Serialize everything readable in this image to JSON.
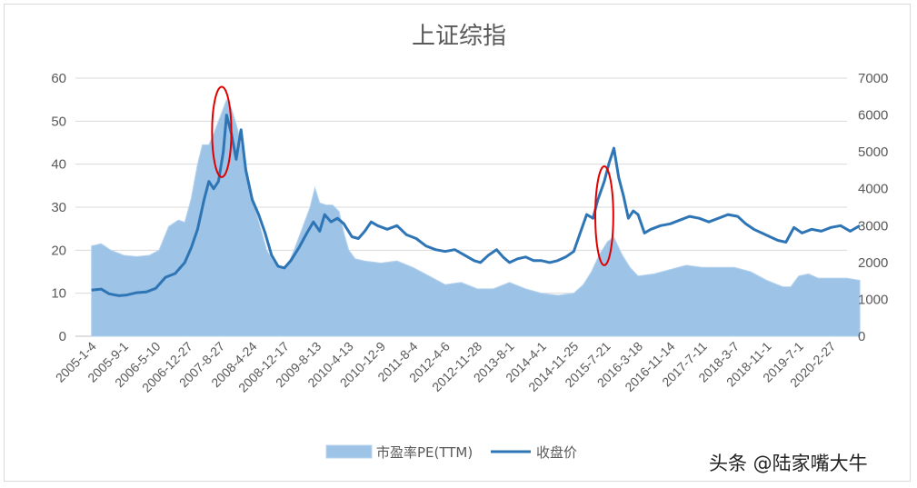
{
  "chart_data": {
    "type": "area+line",
    "title": "上证综指",
    "x_tick_labels": [
      "2005-1-4",
      "2005-9-1",
      "2006-5-10",
      "2006-12-27",
      "2007-8-27",
      "2008-4-24",
      "2008-12-17",
      "2009-8-13",
      "2010-4-13",
      "2010-12-9",
      "2011-8-4",
      "2012-4-6",
      "2012-11-28",
      "2013-8-1",
      "2014-4-1",
      "2014-11-25",
      "2015-7-21",
      "2016-3-18",
      "2016-11-14",
      "2017-7-11",
      "2018-3-7",
      "2018-11-1",
      "2019-7-1",
      "2020-2-27"
    ],
    "y_left": {
      "min": 0,
      "max": 60,
      "step": 10,
      "ticks": [
        "0",
        "10",
        "20",
        "30",
        "40",
        "50",
        "60"
      ]
    },
    "y_right": {
      "min": 0,
      "max": 7000,
      "step": 1000,
      "ticks": [
        "0",
        "1000",
        "2000",
        "3000",
        "4000",
        "5000",
        "6000",
        "7000"
      ]
    },
    "grid": true,
    "legend_position": "bottom",
    "series": [
      {
        "name": "市盈率PE(TTM)",
        "type": "area",
        "axis": "left",
        "color": "#9dc3e6",
        "points": [
          [
            0,
            21
          ],
          [
            0.3,
            21.5
          ],
          [
            0.6,
            20
          ],
          [
            1.0,
            18.8
          ],
          [
            1.4,
            18.5
          ],
          [
            1.8,
            18.8
          ],
          [
            2.1,
            20
          ],
          [
            2.4,
            25.5
          ],
          [
            2.7,
            27
          ],
          [
            2.9,
            26.5
          ],
          [
            3.1,
            32
          ],
          [
            3.3,
            40
          ],
          [
            3.45,
            44.5
          ],
          [
            3.65,
            44.5
          ],
          [
            3.8,
            47
          ],
          [
            3.95,
            50
          ],
          [
            4.05,
            52
          ],
          [
            4.2,
            55
          ],
          [
            4.35,
            53
          ],
          [
            4.55,
            48
          ],
          [
            4.7,
            43
          ],
          [
            4.85,
            38
          ],
          [
            5.0,
            32
          ],
          [
            5.15,
            28
          ],
          [
            5.3,
            24
          ],
          [
            5.45,
            20
          ],
          [
            5.65,
            17.5
          ],
          [
            5.9,
            16
          ],
          [
            6.1,
            16.5
          ],
          [
            6.3,
            20
          ],
          [
            6.55,
            25
          ],
          [
            6.8,
            30
          ],
          [
            6.95,
            34.5
          ],
          [
            7.1,
            31
          ],
          [
            7.3,
            30.5
          ],
          [
            7.5,
            30.5
          ],
          [
            7.7,
            29
          ],
          [
            7.85,
            24
          ],
          [
            8.0,
            20
          ],
          [
            8.2,
            18
          ],
          [
            8.5,
            17.5
          ],
          [
            9.0,
            17
          ],
          [
            9.5,
            17.5
          ],
          [
            10.0,
            16
          ],
          [
            10.5,
            14
          ],
          [
            11.0,
            12
          ],
          [
            11.5,
            12.5
          ],
          [
            12.0,
            11
          ],
          [
            12.5,
            11
          ],
          [
            13.0,
            12.5
          ],
          [
            13.5,
            11
          ],
          [
            14.0,
            10
          ],
          [
            14.5,
            9.5
          ],
          [
            15.0,
            10
          ],
          [
            15.3,
            12
          ],
          [
            15.55,
            15
          ],
          [
            15.8,
            19
          ],
          [
            16.05,
            22
          ],
          [
            16.25,
            23
          ],
          [
            16.5,
            19
          ],
          [
            16.75,
            16
          ],
          [
            17.0,
            14
          ],
          [
            17.5,
            14.5
          ],
          [
            18.0,
            15.5
          ],
          [
            18.5,
            16.5
          ],
          [
            19.0,
            16
          ],
          [
            19.5,
            16
          ],
          [
            20.0,
            16
          ],
          [
            20.5,
            15
          ],
          [
            21.0,
            13
          ],
          [
            21.5,
            11.5
          ],
          [
            21.75,
            11.5
          ],
          [
            22.0,
            14
          ],
          [
            22.3,
            14.5
          ],
          [
            22.6,
            13.5
          ],
          [
            23.0,
            13.5
          ],
          [
            23.5,
            13.5
          ],
          [
            23.9,
            13
          ]
        ]
      },
      {
        "name": "收盘价",
        "type": "line",
        "axis": "right",
        "color": "#2e75b6",
        "points": [
          [
            0,
            1250
          ],
          [
            0.3,
            1280
          ],
          [
            0.55,
            1150
          ],
          [
            0.85,
            1100
          ],
          [
            1.1,
            1120
          ],
          [
            1.4,
            1180
          ],
          [
            1.7,
            1200
          ],
          [
            2.0,
            1300
          ],
          [
            2.3,
            1600
          ],
          [
            2.6,
            1700
          ],
          [
            2.9,
            2000
          ],
          [
            3.1,
            2400
          ],
          [
            3.3,
            2900
          ],
          [
            3.5,
            3700
          ],
          [
            3.65,
            4200
          ],
          [
            3.8,
            4000
          ],
          [
            3.95,
            4200
          ],
          [
            4.1,
            5000
          ],
          [
            4.2,
            6000
          ],
          [
            4.35,
            5500
          ],
          [
            4.5,
            4800
          ],
          [
            4.65,
            5600
          ],
          [
            4.8,
            4500
          ],
          [
            5.0,
            3700
          ],
          [
            5.2,
            3300
          ],
          [
            5.4,
            2800
          ],
          [
            5.6,
            2200
          ],
          [
            5.8,
            1900
          ],
          [
            6.0,
            1850
          ],
          [
            6.2,
            2050
          ],
          [
            6.45,
            2400
          ],
          [
            6.7,
            2800
          ],
          [
            6.9,
            3100
          ],
          [
            7.1,
            2850
          ],
          [
            7.25,
            3300
          ],
          [
            7.45,
            3100
          ],
          [
            7.65,
            3200
          ],
          [
            7.85,
            3050
          ],
          [
            8.1,
            2700
          ],
          [
            8.3,
            2650
          ],
          [
            8.5,
            2850
          ],
          [
            8.7,
            3100
          ],
          [
            8.9,
            3000
          ],
          [
            9.2,
            2900
          ],
          [
            9.5,
            3000
          ],
          [
            9.8,
            2750
          ],
          [
            10.1,
            2650
          ],
          [
            10.4,
            2450
          ],
          [
            10.7,
            2350
          ],
          [
            11.0,
            2300
          ],
          [
            11.3,
            2350
          ],
          [
            11.6,
            2200
          ],
          [
            11.9,
            2050
          ],
          [
            12.1,
            2000
          ],
          [
            12.35,
            2200
          ],
          [
            12.6,
            2350
          ],
          [
            12.8,
            2150
          ],
          [
            13.0,
            2000
          ],
          [
            13.25,
            2100
          ],
          [
            13.5,
            2150
          ],
          [
            13.75,
            2050
          ],
          [
            14.0,
            2050
          ],
          [
            14.25,
            2000
          ],
          [
            14.5,
            2050
          ],
          [
            14.75,
            2150
          ],
          [
            15.0,
            2300
          ],
          [
            15.2,
            2800
          ],
          [
            15.4,
            3300
          ],
          [
            15.6,
            3200
          ],
          [
            15.75,
            3700
          ],
          [
            15.95,
            4200
          ],
          [
            16.1,
            4700
          ],
          [
            16.25,
            5100
          ],
          [
            16.4,
            4300
          ],
          [
            16.55,
            3800
          ],
          [
            16.7,
            3200
          ],
          [
            16.85,
            3400
          ],
          [
            17.0,
            3300
          ],
          [
            17.2,
            2800
          ],
          [
            17.4,
            2900
          ],
          [
            17.7,
            3000
          ],
          [
            18.0,
            3050
          ],
          [
            18.3,
            3150
          ],
          [
            18.6,
            3250
          ],
          [
            18.9,
            3200
          ],
          [
            19.2,
            3100
          ],
          [
            19.5,
            3200
          ],
          [
            19.8,
            3300
          ],
          [
            20.1,
            3250
          ],
          [
            20.35,
            3050
          ],
          [
            20.6,
            2900
          ],
          [
            20.85,
            2800
          ],
          [
            21.1,
            2700
          ],
          [
            21.35,
            2600
          ],
          [
            21.6,
            2550
          ],
          [
            21.85,
            2950
          ],
          [
            22.1,
            2800
          ],
          [
            22.4,
            2900
          ],
          [
            22.7,
            2850
          ],
          [
            23.0,
            2950
          ],
          [
            23.3,
            3000
          ],
          [
            23.6,
            2850
          ],
          [
            23.9,
            3000
          ]
        ]
      }
    ],
    "annotations": [
      {
        "shape": "ellipse",
        "color": "#e00000",
        "center_x": 4.05,
        "center_y": 47.5,
        "radius_x": 0.3,
        "radius_y": 10.5,
        "axis": "left"
      },
      {
        "shape": "ellipse",
        "color": "#e00000",
        "center_x": 15.95,
        "center_y": 28,
        "radius_x": 0.28,
        "radius_y": 11.5,
        "axis": "left"
      }
    ]
  },
  "watermark": "头条 @陆家嘴大牛"
}
